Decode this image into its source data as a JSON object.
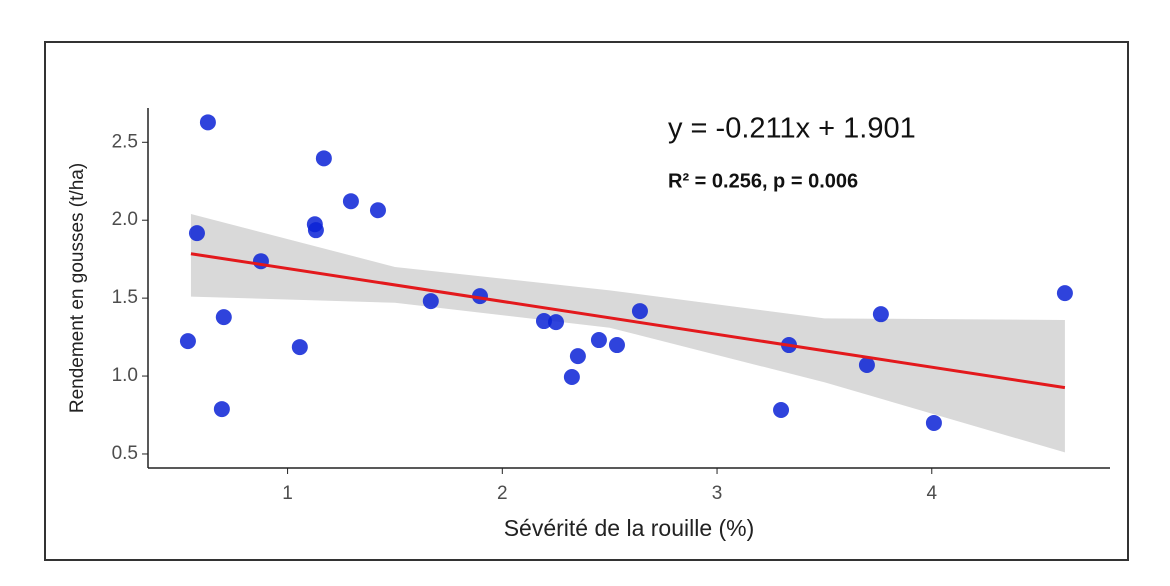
{
  "chart_data": {
    "type": "scatter",
    "x_label": "Sévérité de la rouille (%)",
    "y_label": "Rendement en gousses (t/ha)",
    "annotations": [
      "y = -0.211x + 1.901",
      "R² = 0.256, p = 0.006"
    ],
    "xlim": [
      0.35,
      4.83
    ],
    "ylim": [
      0.41,
      2.72
    ],
    "xticks": [
      1,
      2,
      3,
      4
    ],
    "yticks": [
      0.5,
      {
        "value": 1,
        "label": "1.0"
      },
      1.5,
      {
        "value": 2,
        "label": "2.0"
      },
      2.5
    ],
    "series": [
      {
        "color": "#0b22d6",
        "x": [
          0.536,
          0.629,
          0.578,
          0.703,
          0.694,
          0.876,
          1.057,
          1.127,
          1.132,
          1.169,
          1.295,
          1.421,
          1.667,
          1.896,
          2.194,
          2.25,
          2.324,
          2.352,
          2.45,
          2.534,
          2.641,
          3.298,
          3.335,
          3.698,
          3.763,
          4.01,
          4.62
        ],
        "values": [
          1.224,
          2.628,
          1.917,
          1.378,
          0.788,
          1.737,
          1.186,
          1.974,
          1.936,
          2.397,
          2.122,
          2.064,
          1.481,
          1.513,
          1.353,
          1.346,
          0.994,
          1.128,
          1.231,
          1.199,
          1.417,
          0.782,
          1.199,
          1.071,
          1.397,
          0.699,
          1.532
        ]
      }
    ],
    "fit": {
      "color": "#e3191c",
      "x": [
        0.55,
        4.62
      ],
      "values": [
        1.785,
        0.926
      ]
    },
    "band": {
      "color": "#d9d9d9",
      "x": [
        0.55,
        1.5,
        2.5,
        3.5,
        4.62
      ],
      "upper": [
        2.04,
        1.7,
        1.55,
        1.37,
        1.36
      ],
      "lower": [
        1.51,
        1.47,
        1.31,
        0.96,
        0.51
      ]
    }
  }
}
